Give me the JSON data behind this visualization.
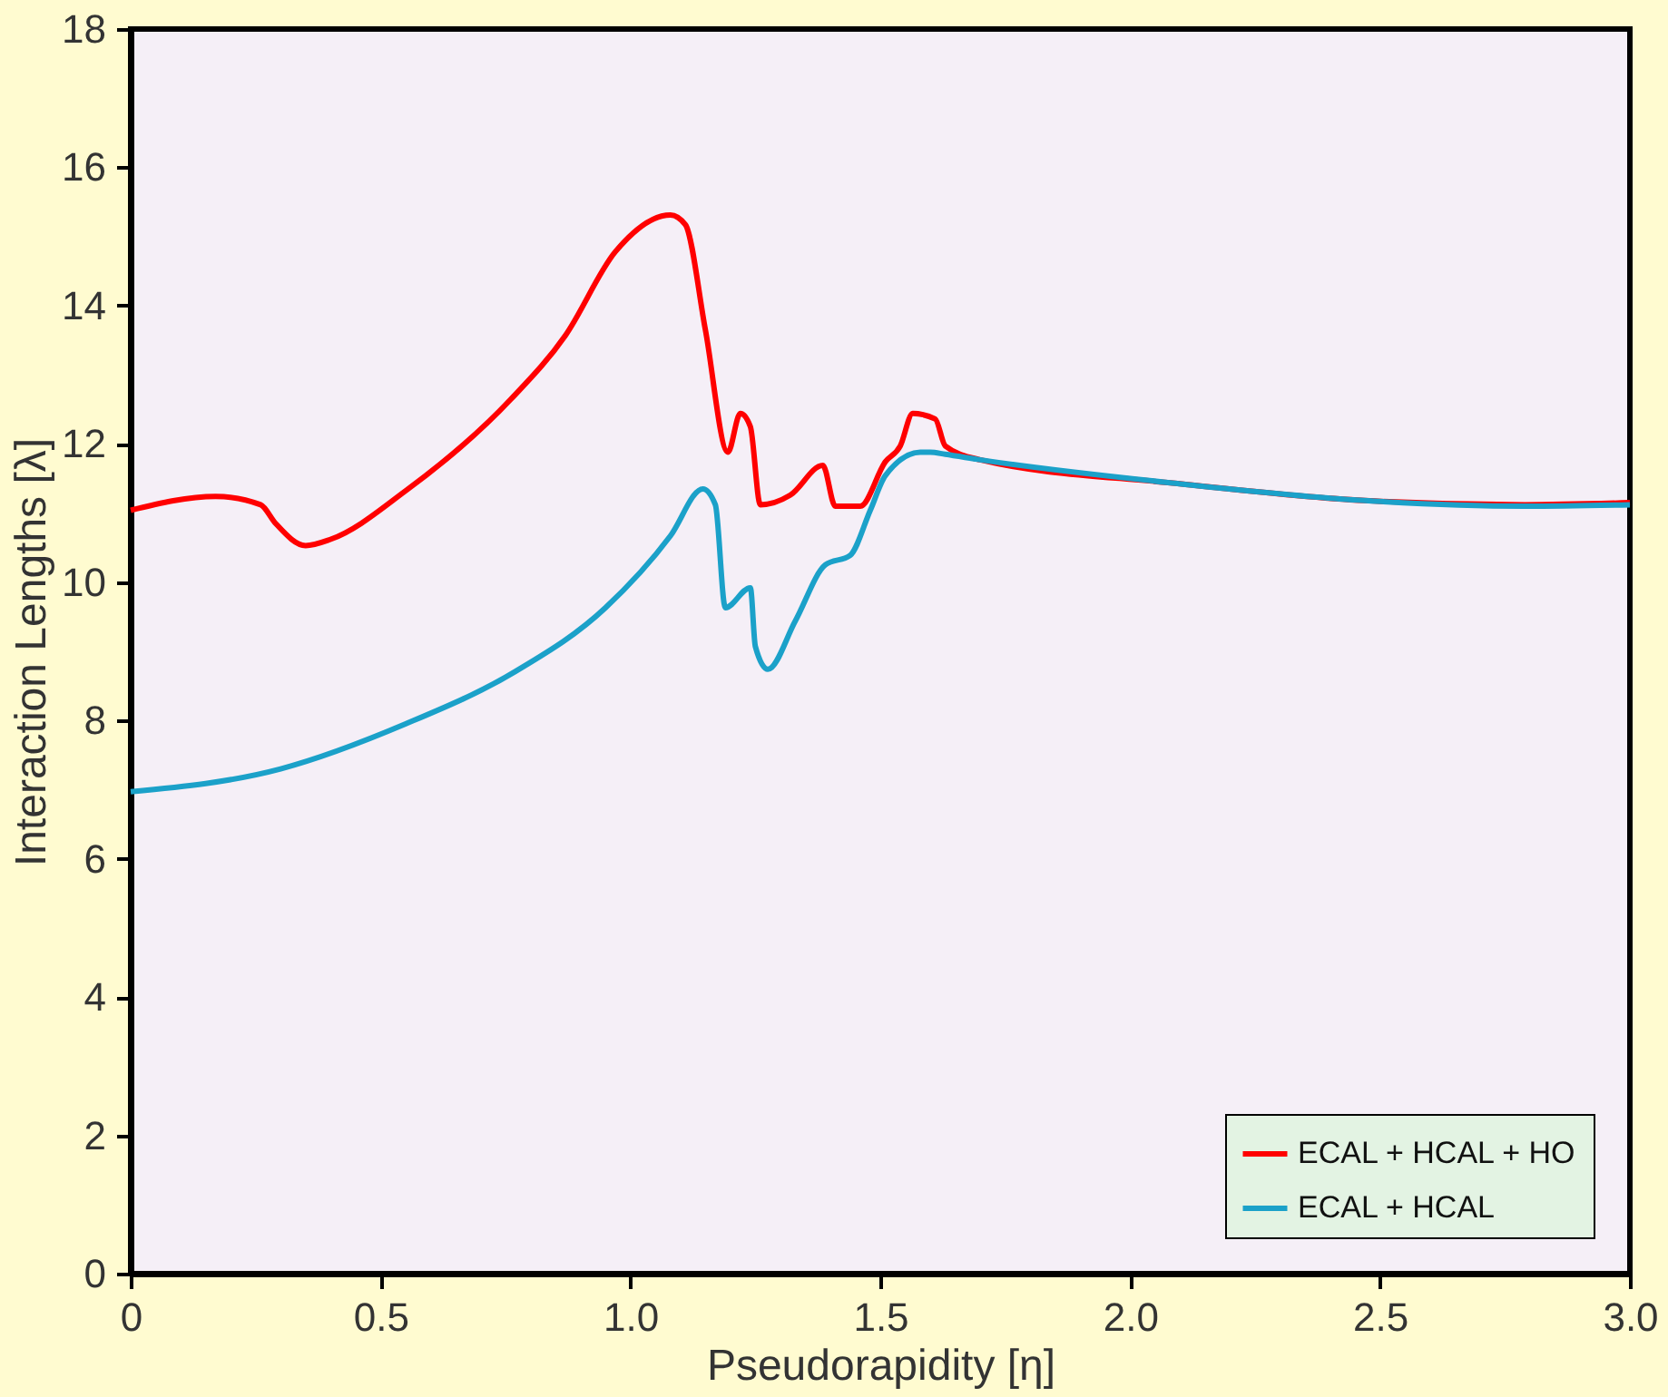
{
  "chart_data": {
    "type": "line",
    "xlabel": "Pseudorapidity [η]",
    "ylabel": "Interaction Lengths [λ]",
    "xlim": [
      0,
      3.0
    ],
    "ylim": [
      0,
      18
    ],
    "xticks": [
      0,
      0.5,
      {
        "value": 1,
        "label": "1.0"
      },
      1.5,
      {
        "value": 2,
        "label": "2.0"
      },
      2.5,
      {
        "value": 3,
        "label": "3.0"
      }
    ],
    "yticks": [
      0,
      2,
      4,
      6,
      8,
      10,
      12,
      14,
      16,
      18
    ],
    "grid": false,
    "legend": "bottom right",
    "line_style": "solid",
    "marker": "none",
    "series": [
      {
        "name": "ECAL + HCAL + HO",
        "color": "#ff0000",
        "x": [
          0,
          0.17,
          0.26,
          0.29,
          0.35,
          0.4,
          0.55,
          0.76,
          0.87,
          0.97,
          1.08,
          1.11,
          1.15,
          1.195,
          1.22,
          1.24,
          1.26,
          1.32,
          1.385,
          1.41,
          1.46,
          1.51,
          1.54,
          1.565,
          1.61,
          1.63,
          1.7,
          2.09,
          2.47,
          2.79,
          3.0
        ],
        "values": [
          11.04,
          11.24,
          11.12,
          10.85,
          10.53,
          10.62,
          11.32,
          12.64,
          13.57,
          14.78,
          15.31,
          15.17,
          13.65,
          11.88,
          12.44,
          12.25,
          11.12,
          11.26,
          11.69,
          11.1,
          11.1,
          11.74,
          11.97,
          12.44,
          12.36,
          11.97,
          11.77,
          11.43,
          11.18,
          11.12,
          11.15
        ]
      },
      {
        "name": "ECAL + HCAL",
        "color": "#1ba1c9",
        "x": [
          0,
          0.3,
          0.55,
          0.77,
          0.95,
          1.08,
          1.145,
          1.17,
          1.19,
          1.24,
          1.25,
          1.275,
          1.33,
          1.39,
          1.44,
          1.48,
          1.51,
          1.58,
          1.6,
          1.63,
          1.7,
          2.09,
          2.47,
          2.79,
          3.0
        ],
        "values": [
          6.97,
          7.3,
          7.95,
          8.71,
          9.63,
          10.67,
          11.35,
          11.12,
          9.63,
          9.92,
          9.07,
          8.74,
          9.44,
          10.25,
          10.39,
          11.04,
          11.54,
          11.88,
          11.88,
          11.85,
          11.77,
          11.43,
          11.18,
          11.1,
          11.12
        ]
      }
    ]
  }
}
